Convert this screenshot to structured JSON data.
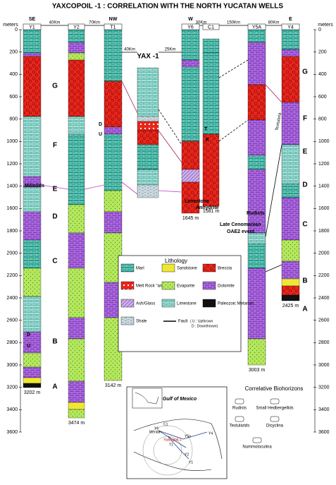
{
  "title": "YAXCOPOIL -1 : CORRELATION WITH THE NORTH YUCATAN WELLS",
  "depth_axis": {
    "unit": "meters",
    "ticks": [
      0,
      200,
      400,
      600,
      800,
      1000,
      1200,
      1400,
      1600,
      1800,
      2000,
      2200,
      2400,
      2600,
      2800,
      3000,
      3200,
      3400,
      3600
    ]
  },
  "wells": [
    {
      "name": "Y1",
      "direction": "SE",
      "total_depth": "3202 m"
    },
    {
      "name": "Y2",
      "total_depth": "3474 m"
    },
    {
      "name": "T1",
      "direction": "NW",
      "total_depth": "3142 m"
    },
    {
      "name": "YAX -1"
    },
    {
      "name": "Y6",
      "direction": "W",
      "total_depth": "1645 m"
    },
    {
      "name": "C1",
      "total_depth": "1581 m"
    },
    {
      "name": "Y5A",
      "total_depth": "3003 m"
    },
    {
      "name": "Y4",
      "direction": "E",
      "total_depth": "2425 m"
    }
  ],
  "distances": [
    "40Km",
    "70Km",
    "40Km",
    "25Km",
    "30Km",
    "150Km",
    "80Km"
  ],
  "zones_left": [
    "G",
    "F",
    "E",
    "D",
    "C",
    "B",
    "A"
  ],
  "zones_right": [
    "G",
    "F",
    "E",
    "D",
    "C",
    "B",
    "A"
  ],
  "annotations": {
    "fault_t1": [
      "D",
      "U"
    ],
    "fault_y1": [
      "D",
      "U"
    ],
    "boundary": [
      "T",
      "K"
    ],
    "limestone": "Limestone",
    "anhydrite": "Anhydrite",
    "miliolids": "Miliolids",
    "textularia": "Textularia",
    "rudists": "Rudists",
    "oae2": [
      "Late Cenomanian",
      "OAE2 event"
    ]
  },
  "lithology_legend": {
    "title": "Lithology",
    "items": [
      "Marl",
      "Sandstone",
      "Breccia",
      "Melt Rock \"andesite\"",
      "Evaporite",
      "Dolomite",
      "Ash/Glass",
      "Limestone",
      "Paleozoic Metamor.",
      "Shale"
    ],
    "fault": "Fault",
    "fault_note": [
      "( U : Upthrown",
      "D : Downthrown)"
    ]
  },
  "biohorizons": {
    "title": "Correlative Biohorizons",
    "items": [
      "Rudists",
      "Small Hedbergellids",
      "Textularids",
      "Dicyclina",
      "Nummoloculina"
    ]
  },
  "map": {
    "sea": "Gulf of Mexico",
    "city": "Merida",
    "site": "Yaxcopoil-1",
    "wells": [
      "Y6",
      "C1",
      "Y5a",
      "Y4",
      "T1",
      "Y2",
      "Y1"
    ]
  }
}
